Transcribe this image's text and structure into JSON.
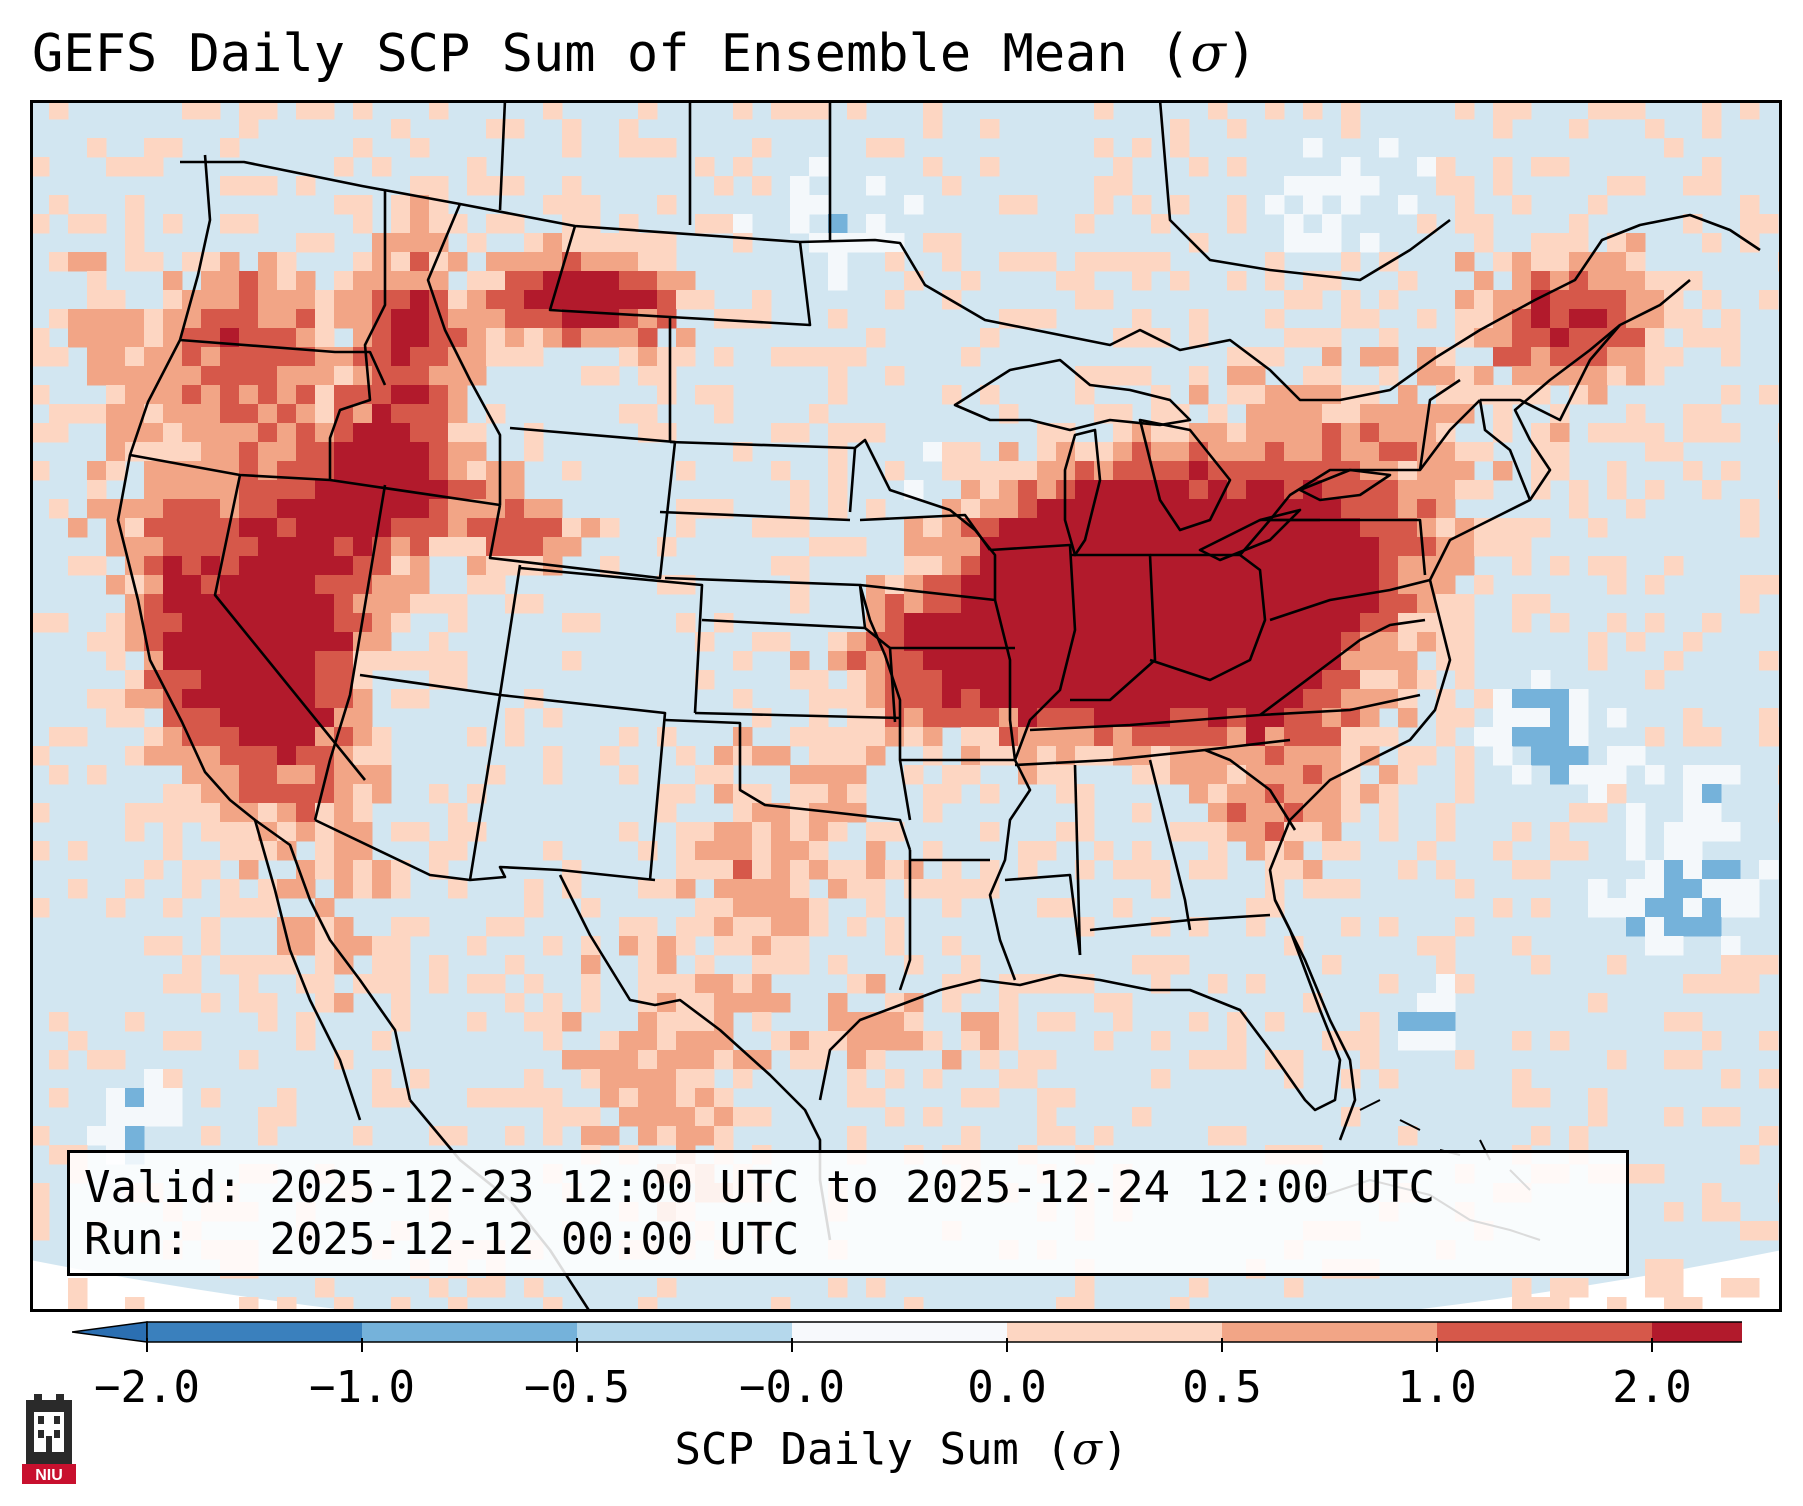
{
  "title": {
    "text": "GEFS Daily SCP Sum of Ensemble Mean (",
    "symbol": "σ",
    "close": ")"
  },
  "info_box": {
    "valid_label": "Valid:",
    "valid_value": "2025-12-23 12:00 UTC to 2025-12-24 12:00 UTC",
    "run_label": "Run:",
    "run_value": "2025-12-12 00:00 UTC"
  },
  "colorbar": {
    "label_text": "SCP Daily Sum (",
    "label_symbol": "σ",
    "label_close": ")",
    "ticks": [
      "−2.0",
      "−1.0",
      "−0.5",
      "−0.0",
      "0.0",
      "0.5",
      "1.0",
      "2.0"
    ],
    "colors": [
      "#3a80bd",
      "#75b2da",
      "#b5d8ec",
      "#f7f9fc",
      "#fdd6c2",
      "#f2a586",
      "#d6584a",
      "#b21a2c"
    ],
    "extend_min_color": "#2b6fb2",
    "extend_max_color": "#b01429"
  },
  "map": {
    "background_color": "#d2e6f1",
    "region": "Contiguous United States",
    "cell_grid_degrees": 0.5
  },
  "logo": {
    "text": "NIU",
    "name": "niu-logo"
  }
}
